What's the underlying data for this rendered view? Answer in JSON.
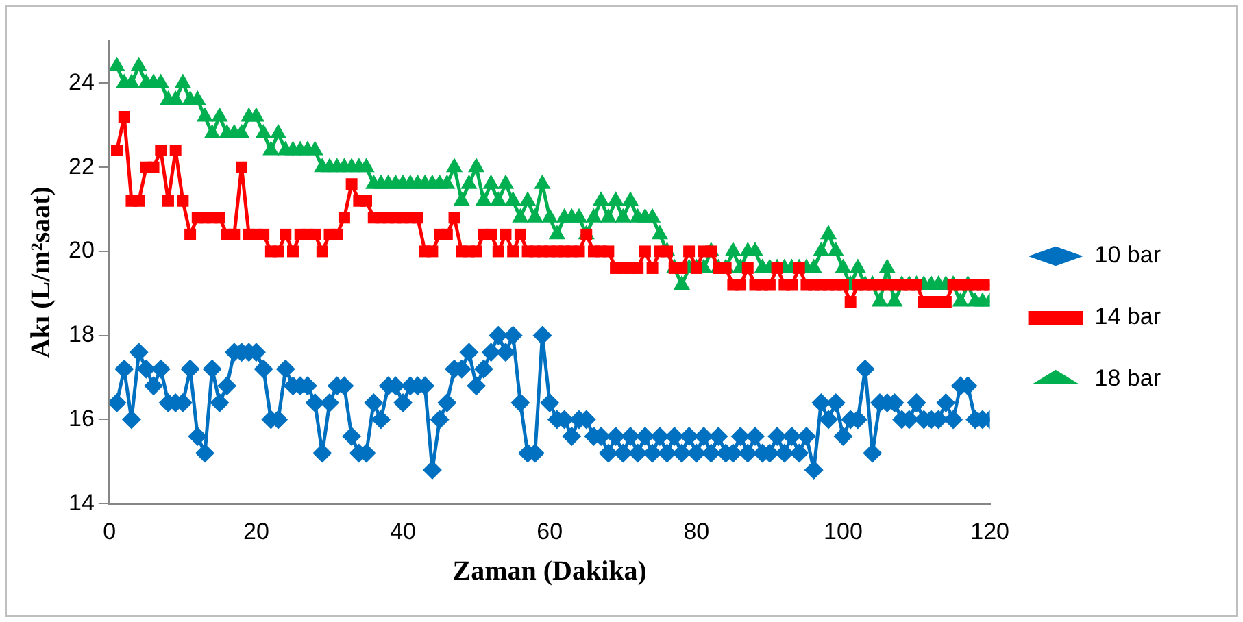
{
  "chart_data": {
    "type": "line",
    "xlabel": "Zaman (Dakika)",
    "ylabel": "Akı (L/m²saat)",
    "x": [
      1,
      2,
      3,
      4,
      5,
      6,
      7,
      8,
      9,
      10,
      11,
      12,
      13,
      14,
      15,
      16,
      17,
      18,
      19,
      20,
      21,
      22,
      23,
      24,
      25,
      26,
      27,
      28,
      29,
      30,
      31,
      32,
      33,
      34,
      35,
      36,
      37,
      38,
      39,
      40,
      41,
      42,
      43,
      44,
      45,
      46,
      47,
      48,
      49,
      50,
      51,
      52,
      53,
      54,
      55,
      56,
      57,
      58,
      59,
      60,
      61,
      62,
      63,
      64,
      65,
      66,
      67,
      68,
      69,
      70,
      71,
      72,
      73,
      74,
      75,
      76,
      77,
      78,
      79,
      80,
      81,
      82,
      83,
      84,
      85,
      86,
      87,
      88,
      89,
      90,
      91,
      92,
      93,
      94,
      95,
      96,
      97,
      98,
      99,
      100,
      101,
      102,
      103,
      104,
      105,
      106,
      107,
      108,
      109,
      110,
      111,
      112,
      113,
      114,
      115,
      116,
      117,
      118,
      119,
      120
    ],
    "xlim": [
      0,
      120
    ],
    "xticks": [
      0,
      20,
      40,
      60,
      80,
      100,
      120
    ],
    "ylim": [
      14,
      25
    ],
    "yticks": [
      14,
      16,
      18,
      20,
      22,
      24
    ],
    "grid": false,
    "legend": "right",
    "line_style": "solid",
    "series": [
      {
        "name": "10 bar",
        "color": "#0070c0",
        "marker": "diamond",
        "values": [
          16.4,
          17.2,
          16.0,
          17.6,
          17.2,
          16.8,
          17.2,
          16.4,
          16.4,
          16.4,
          17.2,
          15.6,
          15.2,
          17.2,
          16.4,
          16.8,
          17.6,
          17.6,
          17.6,
          17.6,
          17.2,
          16.0,
          16.0,
          17.2,
          16.8,
          16.8,
          16.8,
          16.4,
          15.2,
          16.4,
          16.8,
          16.8,
          15.6,
          15.2,
          15.2,
          16.4,
          16.0,
          16.8,
          16.8,
          16.4,
          16.8,
          16.8,
          16.8,
          14.8,
          16.0,
          16.4,
          17.2,
          17.2,
          17.6,
          16.8,
          17.2,
          17.6,
          18.0,
          17.6,
          18.0,
          16.4,
          15.2,
          15.2,
          18.0,
          16.4,
          16.0,
          16.0,
          15.6,
          16.0,
          16.0,
          15.6,
          15.6,
          15.2,
          15.6,
          15.2,
          15.6,
          15.2,
          15.6,
          15.2,
          15.6,
          15.2,
          15.6,
          15.2,
          15.6,
          15.2,
          15.6,
          15.2,
          15.6,
          15.2,
          15.2,
          15.6,
          15.2,
          15.6,
          15.2,
          15.2,
          15.6,
          15.2,
          15.6,
          15.2,
          15.6,
          14.8,
          16.4,
          16.0,
          16.4,
          15.6,
          16.0,
          16.0,
          17.2,
          15.2,
          16.4,
          16.4,
          16.4,
          16.0,
          16.0,
          16.4,
          16.0,
          16.0,
          16.0,
          16.4,
          16.0,
          16.8,
          16.8,
          16.0,
          16.0,
          16.0
        ]
      },
      {
        "name": "14 bar",
        "color": "#ff0000",
        "marker": "square",
        "values": [
          22.4,
          23.2,
          21.2,
          21.2,
          22.0,
          22.0,
          22.4,
          21.2,
          22.4,
          21.2,
          20.4,
          20.8,
          20.8,
          20.8,
          20.8,
          20.4,
          20.4,
          22.0,
          20.4,
          20.4,
          20.4,
          20.0,
          20.0,
          20.4,
          20.0,
          20.4,
          20.4,
          20.4,
          20.0,
          20.4,
          20.4,
          20.8,
          21.6,
          21.2,
          21.2,
          20.8,
          20.8,
          20.8,
          20.8,
          20.8,
          20.8,
          20.8,
          20.0,
          20.0,
          20.4,
          20.4,
          20.8,
          20.0,
          20.0,
          20.0,
          20.4,
          20.4,
          20.0,
          20.4,
          20.0,
          20.4,
          20.0,
          20.0,
          20.0,
          20.0,
          20.0,
          20.0,
          20.0,
          20.0,
          20.4,
          20.0,
          20.0,
          20.0,
          19.6,
          19.6,
          19.6,
          19.6,
          20.0,
          19.6,
          20.0,
          20.0,
          19.6,
          19.6,
          20.0,
          19.6,
          20.0,
          20.0,
          19.6,
          19.6,
          19.2,
          19.2,
          19.6,
          19.2,
          19.2,
          19.2,
          19.6,
          19.2,
          19.2,
          19.6,
          19.2,
          19.2,
          19.2,
          19.2,
          19.2,
          19.2,
          18.8,
          19.2,
          19.2,
          19.2,
          19.2,
          19.2,
          19.2,
          19.2,
          19.2,
          19.2,
          18.8,
          18.8,
          18.8,
          18.8,
          19.2,
          19.2,
          19.2,
          19.2,
          19.2,
          19.2
        ]
      },
      {
        "name": "18 bar",
        "color": "#00b050",
        "marker": "triangle",
        "values": [
          24.4,
          24.0,
          24.0,
          24.4,
          24.0,
          24.0,
          24.0,
          23.6,
          23.6,
          24.0,
          23.6,
          23.6,
          23.2,
          22.8,
          23.2,
          22.8,
          22.8,
          22.8,
          23.2,
          23.2,
          22.8,
          22.4,
          22.8,
          22.4,
          22.4,
          22.4,
          22.4,
          22.4,
          22.0,
          22.0,
          22.0,
          22.0,
          22.0,
          22.0,
          22.0,
          21.6,
          21.6,
          21.6,
          21.6,
          21.6,
          21.6,
          21.6,
          21.6,
          21.6,
          21.6,
          21.6,
          22.0,
          21.2,
          21.6,
          22.0,
          21.2,
          21.6,
          21.2,
          21.6,
          21.2,
          20.8,
          21.2,
          20.8,
          21.6,
          20.8,
          20.4,
          20.8,
          20.8,
          20.8,
          20.4,
          20.8,
          21.2,
          20.8,
          21.2,
          20.8,
          21.2,
          20.8,
          20.8,
          20.8,
          20.4,
          20.0,
          19.6,
          19.2,
          19.6,
          19.6,
          19.6,
          20.0,
          19.6,
          19.6,
          20.0,
          19.6,
          20.0,
          20.0,
          19.6,
          19.6,
          19.6,
          19.6,
          19.6,
          19.6,
          19.6,
          19.6,
          20.0,
          20.4,
          20.0,
          19.6,
          19.2,
          19.6,
          19.2,
          19.2,
          18.8,
          19.6,
          18.8,
          19.2,
          19.2,
          19.2,
          19.2,
          19.2,
          19.2,
          19.2,
          19.2,
          18.8,
          19.2,
          18.8,
          18.8,
          18.8
        ]
      }
    ]
  }
}
